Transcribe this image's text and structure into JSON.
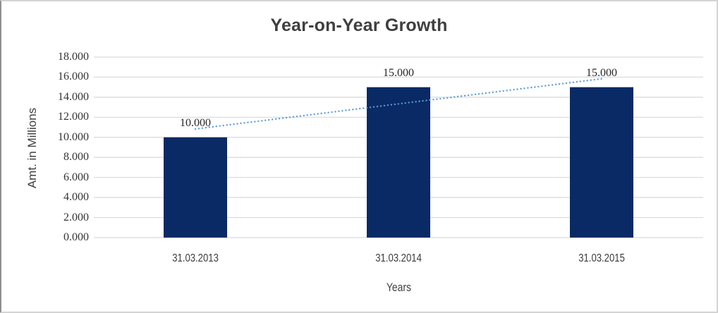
{
  "chart_data": {
    "type": "bar",
    "title": "Year-on-Year Growth",
    "xlabel": "Years",
    "ylabel": "Amt. in Millions",
    "categories": [
      "31.03.2013",
      "31.03.2014",
      "31.03.2015"
    ],
    "values": [
      10,
      15,
      15
    ],
    "value_labels": [
      "10.000",
      "15.000",
      "15.000"
    ],
    "ylim": [
      0,
      18
    ],
    "y_tick_step": 2,
    "y_tick_labels": [
      "0.000",
      "2.000",
      "4.000",
      "6.000",
      "8.000",
      "10.000",
      "12.000",
      "14.000",
      "16.000",
      "18.000"
    ],
    "grid": true,
    "legend": false,
    "trendline": {
      "type": "linear",
      "style": "dotted",
      "values": [
        10.833,
        13.333,
        15.833
      ]
    },
    "colors": {
      "bar": "#0a2a66",
      "trendline": "#5b9bd5",
      "gridline": "#d9d9d9",
      "title_text": "#3f3f3f",
      "tick_text": "#333333",
      "frame_border": "#d4d4d4"
    }
  }
}
